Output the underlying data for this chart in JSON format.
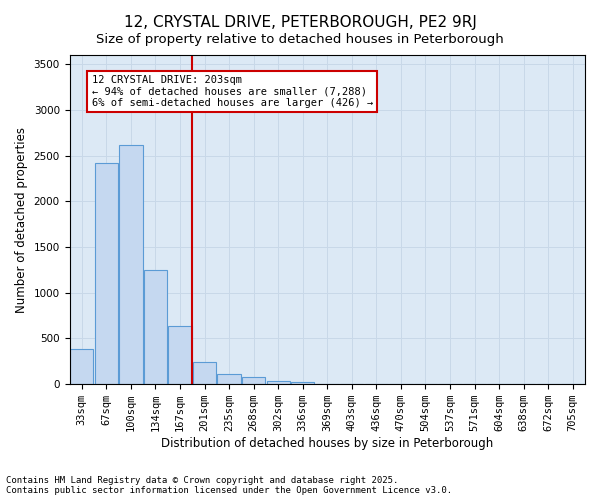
{
  "title_line1": "12, CRYSTAL DRIVE, PETERBOROUGH, PE2 9RJ",
  "title_line2": "Size of property relative to detached houses in Peterborough",
  "xlabel": "Distribution of detached houses by size in Peterborough",
  "ylabel": "Number of detached properties",
  "bin_labels": [
    "33sqm",
    "67sqm",
    "100sqm",
    "134sqm",
    "167sqm",
    "201sqm",
    "235sqm",
    "268sqm",
    "302sqm",
    "336sqm",
    "369sqm",
    "403sqm",
    "436sqm",
    "470sqm",
    "504sqm",
    "537sqm",
    "571sqm",
    "604sqm",
    "638sqm",
    "672sqm",
    "705sqm"
  ],
  "bar_values": [
    390,
    2420,
    2620,
    1250,
    640,
    240,
    110,
    75,
    40,
    20,
    0,
    0,
    0,
    0,
    0,
    0,
    0,
    0,
    0,
    0,
    0
  ],
  "bar_color": "#c5d8f0",
  "bar_edgecolor": "#5b9bd5",
  "vline_x": 5,
  "vline_color": "#cc0000",
  "annotation_text": "12 CRYSTAL DRIVE: 203sqm\n← 94% of detached houses are smaller (7,288)\n6% of semi-detached houses are larger (426) →",
  "annotation_box_color": "#cc0000",
  "ylim": [
    0,
    3600
  ],
  "yticks": [
    0,
    500,
    1000,
    1500,
    2000,
    2500,
    3000,
    3500
  ],
  "grid_color": "#c8d8e8",
  "background_color": "#dce9f5",
  "footer_line1": "Contains HM Land Registry data © Crown copyright and database right 2025.",
  "footer_line2": "Contains public sector information licensed under the Open Government Licence v3.0.",
  "title_fontsize": 11,
  "subtitle_fontsize": 9.5,
  "axis_label_fontsize": 8.5,
  "tick_fontsize": 7.5,
  "annotation_fontsize": 7.5,
  "footer_fontsize": 6.5
}
